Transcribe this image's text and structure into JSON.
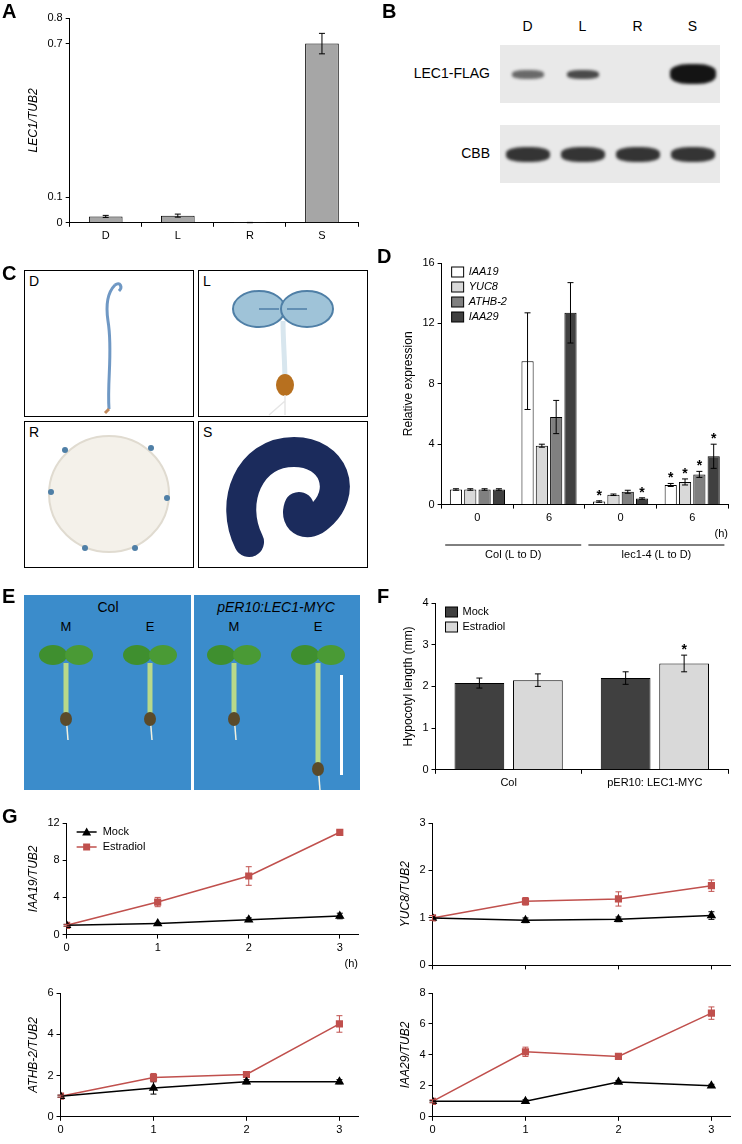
{
  "chart_data": [
    {
      "panel": "A",
      "type": "bar",
      "categories": [
        "D",
        "L",
        "R",
        "S"
      ],
      "values": [
        0.025,
        0.028,
        0.001,
        0.7
      ],
      "errors": [
        0.004,
        0.006,
        0.0005,
        0.04
      ],
      "color": "#a6a6a6",
      "ylabel": "LEC1/TUB2",
      "ylim": [
        0,
        0.8
      ],
      "yticks": [
        0,
        0.1,
        0.7,
        0.8
      ],
      "grid": false
    },
    {
      "panel": "D",
      "type": "bar",
      "categories": [
        "0",
        "6",
        "0",
        "6"
      ],
      "groups": [
        {
          "name": "Col (L to D)",
          "categories": [
            "0",
            "6"
          ]
        },
        {
          "name": "lec1-4 (L to D)",
          "categories": [
            "0",
            "6"
          ]
        }
      ],
      "xlabel": "(h)",
      "ylabel": "Relative expression",
      "ylim": [
        0,
        16
      ],
      "yticks": [
        0,
        4,
        8,
        12,
        16
      ],
      "grid": false,
      "legend": "top-left",
      "series": [
        {
          "name": "IAA19",
          "color": "#ffffff",
          "values": [
            1.0,
            9.5,
            0.2,
            1.3
          ],
          "errors": [
            0.05,
            3.2,
            0.05,
            0.1
          ],
          "significance": [
            null,
            null,
            "*",
            "*"
          ]
        },
        {
          "name": "YUC8",
          "color": "#d9d9d9",
          "values": [
            1.0,
            3.9,
            0.65,
            1.5
          ],
          "errors": [
            0.05,
            0.1,
            0.05,
            0.2
          ],
          "significance": [
            null,
            null,
            null,
            "*"
          ]
        },
        {
          "name": "ATHB-2",
          "color": "#808080",
          "values": [
            1.0,
            5.8,
            0.85,
            2.0
          ],
          "errors": [
            0.05,
            1.1,
            0.1,
            0.2
          ],
          "significance": [
            null,
            null,
            null,
            "*"
          ]
        },
        {
          "name": "IAA29",
          "color": "#404040",
          "values": [
            1.0,
            12.7,
            0.4,
            3.2
          ],
          "errors": [
            0.05,
            2.0,
            0.05,
            0.8
          ],
          "significance": [
            null,
            null,
            "*",
            "*"
          ]
        }
      ]
    },
    {
      "panel": "F",
      "type": "bar",
      "categories": [
        "Col",
        "pER10: LEC1-MYC"
      ],
      "ylabel": "Hypocotyl length (mm)",
      "ylim": [
        0,
        4
      ],
      "yticks": [
        0,
        1,
        2,
        3,
        4
      ],
      "grid": false,
      "legend": "top-left",
      "series": [
        {
          "name": "Mock",
          "color": "#404040",
          "values": [
            2.08,
            2.2
          ],
          "errors": [
            0.12,
            0.15
          ]
        },
        {
          "name": "Estradiol",
          "color": "#d9d9d9",
          "values": [
            2.15,
            2.55
          ],
          "errors": [
            0.15,
            0.2
          ],
          "significance": [
            null,
            "*"
          ]
        }
      ]
    },
    {
      "panel": "G",
      "type": "line",
      "x": [
        0,
        1,
        2,
        3
      ],
      "xlim": [
        0,
        3.2
      ],
      "xticks": [
        0,
        1,
        2,
        3
      ],
      "xlabel": "(h)",
      "ylabel": "IAA19/TUB2",
      "ylim": [
        0,
        12
      ],
      "yticks": [
        0,
        4,
        8,
        12
      ],
      "grid": false,
      "legend": "top-left",
      "series": [
        {
          "name": "Mock",
          "color": "#000000",
          "marker": "triangle",
          "values": [
            1.0,
            1.2,
            1.6,
            2.0
          ],
          "errors": [
            0.1,
            0.1,
            0.2,
            0.3
          ]
        },
        {
          "name": "Estradiol",
          "color": "#c0504d",
          "marker": "square",
          "values": [
            1.0,
            3.5,
            6.3,
            11.0
          ],
          "errors": [
            0.1,
            0.5,
            1.0,
            0.2
          ]
        }
      ]
    },
    {
      "type": "line",
      "x": [
        0,
        1,
        2,
        3
      ],
      "xlim": [
        0,
        3.2
      ],
      "xticks": [
        0,
        1,
        2,
        3
      ],
      "tick_labels": "y",
      "ylabel": "YUC8/TUB2",
      "ylim": [
        0,
        3
      ],
      "yticks": [
        0,
        1,
        2,
        3
      ],
      "grid": false,
      "series": [
        {
          "name": "Mock",
          "color": "#000000",
          "marker": "triangle",
          "values": [
            1.0,
            0.95,
            0.97,
            1.05
          ],
          "errors": [
            0.05,
            0.05,
            0.05,
            0.08
          ]
        },
        {
          "name": "Estradiol",
          "color": "#c0504d",
          "marker": "square",
          "values": [
            1.0,
            1.35,
            1.4,
            1.68
          ],
          "errors": [
            0.05,
            0.08,
            0.15,
            0.12
          ]
        }
      ]
    },
    {
      "type": "line",
      "x": [
        0,
        1,
        2,
        3
      ],
      "xlim": [
        0,
        3.2
      ],
      "xticks": [
        0,
        1,
        2,
        3
      ],
      "ylabel": "ATHB-2/TUB2",
      "ylim": [
        0,
        6
      ],
      "yticks": [
        0,
        2,
        4,
        6
      ],
      "grid": false,
      "series": [
        {
          "name": "Mock",
          "color": "#000000",
          "marker": "triangle",
          "values": [
            1.0,
            1.4,
            1.7,
            1.7
          ],
          "errors": [
            0.05,
            0.3,
            0.1,
            0.1
          ]
        },
        {
          "name": "Estradiol",
          "color": "#c0504d",
          "marker": "square",
          "values": [
            1.0,
            1.9,
            2.05,
            4.5
          ],
          "errors": [
            0.05,
            0.2,
            0.1,
            0.4
          ]
        }
      ]
    },
    {
      "type": "line",
      "x": [
        0,
        1,
        2,
        3
      ],
      "xlim": [
        0,
        3.2
      ],
      "xticks": [
        0,
        1,
        2,
        3
      ],
      "ylabel": "IAA29/TUB2",
      "ylim": [
        0,
        8
      ],
      "yticks": [
        0,
        2,
        4,
        6,
        8
      ],
      "grid": false,
      "series": [
        {
          "name": "Mock",
          "color": "#000000",
          "marker": "triangle",
          "values": [
            1.0,
            1.0,
            2.25,
            2.0
          ],
          "errors": [
            0.05,
            0.1,
            0.1,
            0.1
          ]
        },
        {
          "name": "Estradiol",
          "color": "#c0504d",
          "marker": "square",
          "values": [
            1.0,
            4.2,
            3.9,
            6.7
          ],
          "errors": [
            0.1,
            0.3,
            0.1,
            0.4
          ]
        }
      ]
    }
  ],
  "blot": {
    "panel": "B",
    "lanes": [
      "D",
      "L",
      "R",
      "S"
    ],
    "rows": [
      "LEC1-FLAG",
      "CBB"
    ]
  },
  "photos_c": {
    "panel": "C",
    "labels": [
      "D",
      "L",
      "R",
      "S"
    ]
  },
  "photos_e": {
    "panel": "E",
    "groups": [
      {
        "name": "Col",
        "treatments": [
          "M",
          "E"
        ]
      },
      {
        "name": "pER10:LEC1-MYC",
        "treatments": [
          "M",
          "E"
        ]
      }
    ]
  }
}
